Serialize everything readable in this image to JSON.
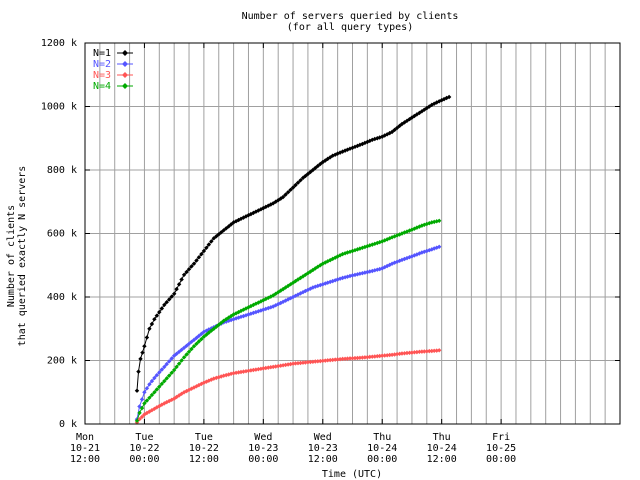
{
  "chart_data": {
    "type": "line",
    "title": "Number of servers queried by clients",
    "subtitle": "(for all query types)",
    "xlabel": "Time (UTC)",
    "ylabel": "Number of clients",
    "ylabel2": "that queried exactly N servers",
    "ylim": [
      0,
      1200000
    ],
    "xlim": [
      0,
      108
    ],
    "grid": true,
    "legend_position": "top-left",
    "y_ticks": [
      {
        "value": 0,
        "label": "0 k"
      },
      {
        "value": 200000,
        "label": "200 k"
      },
      {
        "value": 400000,
        "label": "400 k"
      },
      {
        "value": 600000,
        "label": "600 k"
      },
      {
        "value": 800000,
        "label": "800 k"
      },
      {
        "value": 1000000,
        "label": "1000 k"
      },
      {
        "value": 1200000,
        "label": "1200 k"
      }
    ],
    "x_ticks": [
      {
        "value": 0,
        "lines": [
          "Mon",
          "10-21",
          "12:00"
        ]
      },
      {
        "value": 12,
        "lines": [
          "Tue",
          "10-22",
          "00:00"
        ]
      },
      {
        "value": 24,
        "lines": [
          "Tue",
          "10-22",
          "12:00"
        ]
      },
      {
        "value": 36,
        "lines": [
          "Wed",
          "10-23",
          "00:00"
        ]
      },
      {
        "value": 48,
        "lines": [
          "Wed",
          "10-23",
          "12:00"
        ]
      },
      {
        "value": 60,
        "lines": [
          "Thu",
          "10-24",
          "00:00"
        ]
      },
      {
        "value": 72,
        "lines": [
          "Thu",
          "10-24",
          "12:00"
        ]
      },
      {
        "value": 84,
        "lines": [
          "Fri",
          "10-25",
          "00:00"
        ]
      }
    ],
    "series": [
      {
        "name": "N=1",
        "color": "#000000",
        "points": [
          [
            10.5,
            105000
          ],
          [
            10.8,
            165000
          ],
          [
            11.2,
            205000
          ],
          [
            12,
            245000
          ],
          [
            13,
            300000
          ],
          [
            14,
            330000
          ],
          [
            16,
            375000
          ],
          [
            18,
            410000
          ],
          [
            20,
            470000
          ],
          [
            22,
            505000
          ],
          [
            24,
            545000
          ],
          [
            26,
            585000
          ],
          [
            28,
            610000
          ],
          [
            30,
            635000
          ],
          [
            32,
            650000
          ],
          [
            34,
            665000
          ],
          [
            36,
            680000
          ],
          [
            38,
            695000
          ],
          [
            40,
            715000
          ],
          [
            42,
            745000
          ],
          [
            44,
            775000
          ],
          [
            46,
            800000
          ],
          [
            48,
            825000
          ],
          [
            50,
            845000
          ],
          [
            52,
            858000
          ],
          [
            54,
            870000
          ],
          [
            56,
            882000
          ],
          [
            58,
            895000
          ],
          [
            60,
            905000
          ],
          [
            62,
            920000
          ],
          [
            64,
            945000
          ],
          [
            66,
            965000
          ],
          [
            68,
            985000
          ],
          [
            70,
            1005000
          ],
          [
            72,
            1020000
          ],
          [
            73.5,
            1030000
          ]
        ]
      },
      {
        "name": "N=2",
        "color": "#5555ff",
        "points": [
          [
            10.5,
            15000
          ],
          [
            11,
            55000
          ],
          [
            12,
            100000
          ],
          [
            13,
            125000
          ],
          [
            14,
            145000
          ],
          [
            16,
            180000
          ],
          [
            18,
            215000
          ],
          [
            20,
            240000
          ],
          [
            22,
            265000
          ],
          [
            24,
            290000
          ],
          [
            26,
            305000
          ],
          [
            28,
            320000
          ],
          [
            30,
            330000
          ],
          [
            32,
            340000
          ],
          [
            34,
            350000
          ],
          [
            36,
            360000
          ],
          [
            38,
            370000
          ],
          [
            40,
            385000
          ],
          [
            42,
            400000
          ],
          [
            44,
            415000
          ],
          [
            46,
            430000
          ],
          [
            48,
            440000
          ],
          [
            50,
            450000
          ],
          [
            52,
            460000
          ],
          [
            54,
            468000
          ],
          [
            56,
            475000
          ],
          [
            58,
            482000
          ],
          [
            60,
            490000
          ],
          [
            62,
            505000
          ],
          [
            64,
            517000
          ],
          [
            66,
            528000
          ],
          [
            68,
            540000
          ],
          [
            70,
            550000
          ],
          [
            71.5,
            558000
          ]
        ]
      },
      {
        "name": "N=3",
        "color": "#ff5555",
        "points": [
          [
            10.5,
            5000
          ],
          [
            11,
            15000
          ],
          [
            12,
            30000
          ],
          [
            14,
            48000
          ],
          [
            16,
            65000
          ],
          [
            18,
            80000
          ],
          [
            20,
            100000
          ],
          [
            22,
            115000
          ],
          [
            24,
            130000
          ],
          [
            26,
            143000
          ],
          [
            28,
            152000
          ],
          [
            30,
            160000
          ],
          [
            32,
            165000
          ],
          [
            34,
            170000
          ],
          [
            36,
            175000
          ],
          [
            38,
            180000
          ],
          [
            40,
            185000
          ],
          [
            42,
            190000
          ],
          [
            44,
            193000
          ],
          [
            46,
            196000
          ],
          [
            48,
            199000
          ],
          [
            50,
            202000
          ],
          [
            52,
            205000
          ],
          [
            54,
            207000
          ],
          [
            56,
            209000
          ],
          [
            58,
            212000
          ],
          [
            60,
            215000
          ],
          [
            62,
            218000
          ],
          [
            64,
            222000
          ],
          [
            66,
            225000
          ],
          [
            68,
            228000
          ],
          [
            70,
            230000
          ],
          [
            71.5,
            232000
          ]
        ]
      },
      {
        "name": "N=4",
        "color": "#00aa00",
        "points": [
          [
            10.5,
            10000
          ],
          [
            11,
            35000
          ],
          [
            12,
            65000
          ],
          [
            14,
            100000
          ],
          [
            16,
            135000
          ],
          [
            18,
            170000
          ],
          [
            20,
            210000
          ],
          [
            22,
            245000
          ],
          [
            24,
            275000
          ],
          [
            26,
            300000
          ],
          [
            28,
            325000
          ],
          [
            30,
            345000
          ],
          [
            32,
            360000
          ],
          [
            34,
            375000
          ],
          [
            36,
            390000
          ],
          [
            38,
            405000
          ],
          [
            40,
            425000
          ],
          [
            42,
            445000
          ],
          [
            44,
            465000
          ],
          [
            46,
            485000
          ],
          [
            48,
            505000
          ],
          [
            50,
            520000
          ],
          [
            52,
            535000
          ],
          [
            54,
            545000
          ],
          [
            56,
            555000
          ],
          [
            58,
            565000
          ],
          [
            60,
            575000
          ],
          [
            62,
            588000
          ],
          [
            64,
            600000
          ],
          [
            66,
            612000
          ],
          [
            68,
            625000
          ],
          [
            70,
            635000
          ],
          [
            71.5,
            640000
          ]
        ]
      }
    ]
  }
}
